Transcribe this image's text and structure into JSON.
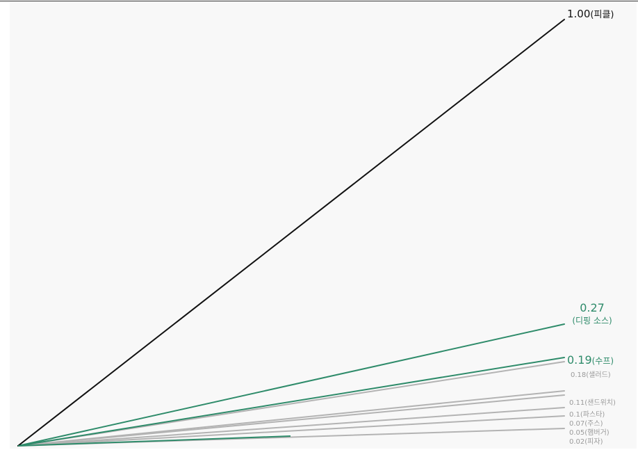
{
  "chart_data": {
    "type": "line",
    "title": "",
    "xlabel": "",
    "ylabel": "",
    "ylim": [
      0,
      1
    ],
    "grid": false,
    "legend": "none",
    "series": [
      {
        "value": 1.0,
        "label_value": "1.00",
        "label_text": "(피클)",
        "color": "#111111",
        "emphasis": "strong"
      },
      {
        "value": 0.27,
        "label_value": "0.27",
        "label_text": "(디핑 소스)",
        "color": "#2e8b6a",
        "emphasis": "highlight"
      },
      {
        "value": 0.19,
        "label_value": "0.19",
        "label_text": "(수프)",
        "color": "#2e8b6a",
        "emphasis": "highlight"
      },
      {
        "value": 0.18,
        "label_value": "0.18",
        "label_text": "(샐러드)",
        "color": "#b3b3b3",
        "emphasis": "muted"
      },
      {
        "value": 0.11,
        "label_value": "0.11",
        "label_text": "(샌드위치)",
        "color": "#b3b3b3",
        "emphasis": "muted"
      },
      {
        "value": 0.1,
        "label_value": "0.1",
        "label_text": "(파스타)",
        "color": "#b3b3b3",
        "emphasis": "muted"
      },
      {
        "value": 0.07,
        "label_value": "0.07",
        "label_text": "(주스)",
        "color": "#b3b3b3",
        "emphasis": "muted"
      },
      {
        "value": 0.05,
        "label_value": "0.05",
        "label_text": "(햄버거)",
        "color": "#b3b3b3",
        "emphasis": "muted"
      },
      {
        "value": 0.02,
        "label_value": "0.02",
        "label_text": "(피자)",
        "color": "#b3b3b3",
        "emphasis": "muted"
      }
    ],
    "extra_short_line": {
      "color": "#2e8b6a"
    }
  }
}
